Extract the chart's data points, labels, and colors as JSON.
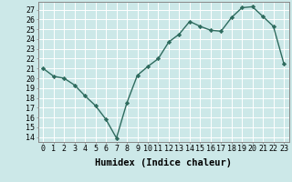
{
  "x": [
    0,
    1,
    2,
    3,
    4,
    5,
    6,
    7,
    8,
    9,
    10,
    11,
    12,
    13,
    14,
    15,
    16,
    17,
    18,
    19,
    20,
    21,
    22,
    23
  ],
  "y": [
    21,
    20.2,
    20,
    19.3,
    18.2,
    17.2,
    15.8,
    13.9,
    17.5,
    20.3,
    21.2,
    22.0,
    23.7,
    24.5,
    25.8,
    25.3,
    24.9,
    24.8,
    26.2,
    27.2,
    27.3,
    26.3,
    25.3,
    21.5
  ],
  "line_color": "#2e6b5e",
  "marker": "D",
  "marker_size": 2.2,
  "bg_color": "#cce8e8",
  "grid_color": "#ffffff",
  "xlabel": "Humidex (Indice chaleur)",
  "ylabel_ticks": [
    14,
    15,
    16,
    17,
    18,
    19,
    20,
    21,
    22,
    23,
    24,
    25,
    26,
    27
  ],
  "ylim": [
    13.5,
    27.8
  ],
  "xlim": [
    -0.5,
    23.5
  ],
  "xticks": [
    0,
    1,
    2,
    3,
    4,
    5,
    6,
    7,
    8,
    9,
    10,
    11,
    12,
    13,
    14,
    15,
    16,
    17,
    18,
    19,
    20,
    21,
    22,
    23
  ],
  "xlabel_fontsize": 7.5,
  "tick_fontsize": 6.0,
  "linewidth": 1.0
}
